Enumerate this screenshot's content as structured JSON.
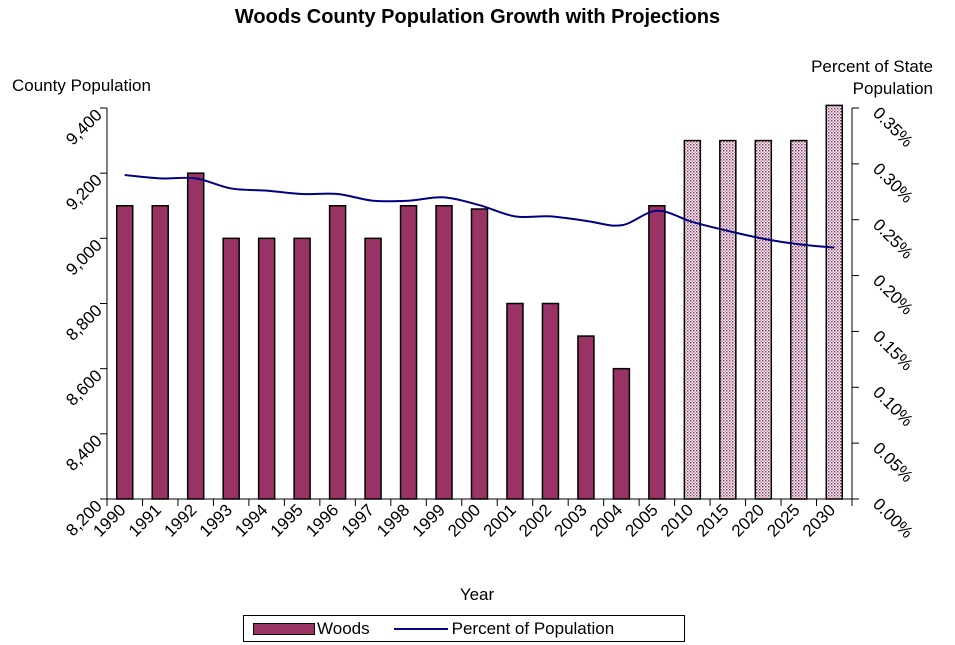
{
  "chart_data": {
    "type": "bar",
    "title": "Woods County Population Growth with Projections",
    "xlabel": "Year",
    "ylabel": "County Population",
    "y2label_line1": "Percent of State",
    "y2label_line2": "Population",
    "categories": [
      "1990",
      "1991",
      "1992",
      "1993",
      "1994",
      "1995",
      "1996",
      "1997",
      "1998",
      "1999",
      "2000",
      "2001",
      "2002",
      "2003",
      "2004",
      "2005",
      "2010",
      "2015",
      "2020",
      "2025",
      "2030"
    ],
    "ylim": [
      8200,
      9400
    ],
    "y_ticks": [
      8200,
      8400,
      8600,
      8800,
      9000,
      9200,
      9400
    ],
    "y_tick_labels": [
      "8,200",
      "8,400",
      "8,600",
      "8,800",
      "9,000",
      "9,200",
      "9,400"
    ],
    "y2lim": [
      0,
      0.35
    ],
    "y2_ticks": [
      0,
      0.05,
      0.1,
      0.15,
      0.2,
      0.25,
      0.3,
      0.35
    ],
    "y2_tick_labels": [
      "0.00%",
      "0.05%",
      "0.10%",
      "0.15%",
      "0.20%",
      "0.25%",
      "0.30%",
      "0.35%"
    ],
    "series": [
      {
        "name": "Woods",
        "type": "bar",
        "axis": "left",
        "color": "#993366",
        "projected_pattern_from_index": 16,
        "values": [
          9100,
          9100,
          9200,
          9000,
          9000,
          9000,
          9100,
          9000,
          9100,
          9100,
          9090,
          8800,
          8800,
          8700,
          8600,
          9100,
          9300,
          9300,
          9300,
          9300,
          9408
        ]
      },
      {
        "name": "Percent of Population",
        "type": "line",
        "axis": "right",
        "color": "#000080",
        "values": [
          0.29,
          0.287,
          0.287,
          0.278,
          0.276,
          0.273,
          0.273,
          0.267,
          0.267,
          0.27,
          0.263,
          0.253,
          0.253,
          0.249,
          0.245,
          0.258,
          0.248,
          0.24,
          0.233,
          0.228,
          0.225
        ]
      }
    ],
    "grid": false,
    "legend_position": "bottom"
  }
}
